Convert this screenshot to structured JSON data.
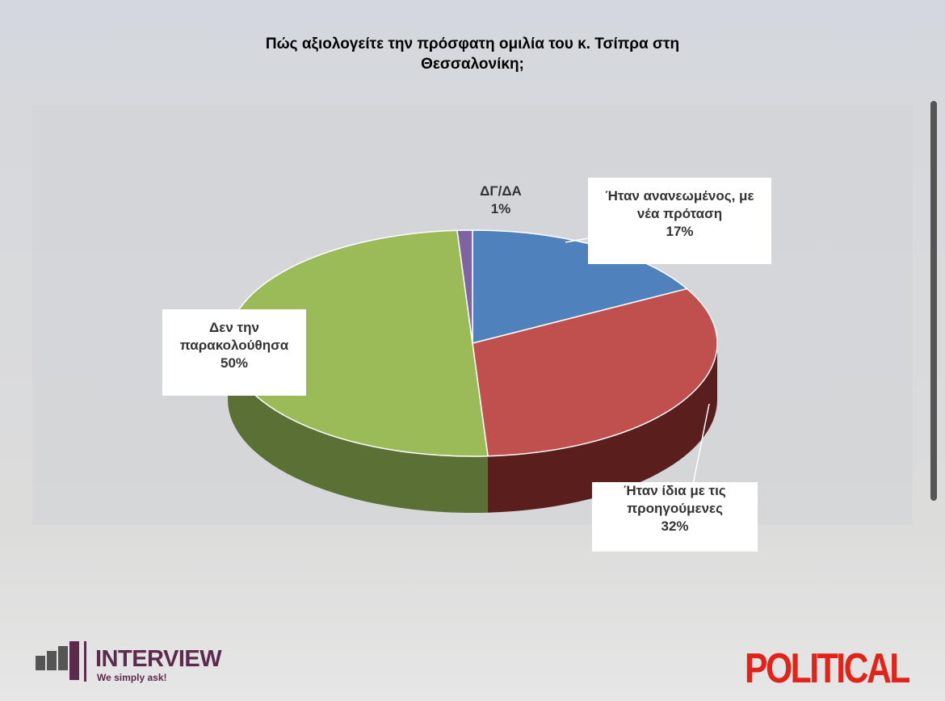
{
  "chart_data": {
    "type": "pie",
    "title": "Πώς αξιολογείτε την πρόσφατη ομιλία του κ. Τσίπρα στη Θεσσαλονίκη;",
    "categories": [
      "Ήταν ανανεωμένος, με νέα πρόταση",
      "Ήταν ίδια με τις προηγούμενες",
      "Δεν την παρακολούθησα",
      "ΔΓ/ΔΑ"
    ],
    "values": [
      17,
      32,
      50,
      1
    ],
    "value_labels": [
      "17%",
      "32%",
      "50%",
      "1%"
    ],
    "colors": [
      "#4f81bd",
      "#c0504d",
      "#9bbb59",
      "#8064a2"
    ],
    "side_colors": [
      "#2f4f78",
      "#5a1e1d",
      "#5b7035",
      "#4a3866"
    ]
  },
  "logos": {
    "left": "INTERVIEW",
    "tagline": "We simply ask!",
    "right": "POLITICAL"
  }
}
